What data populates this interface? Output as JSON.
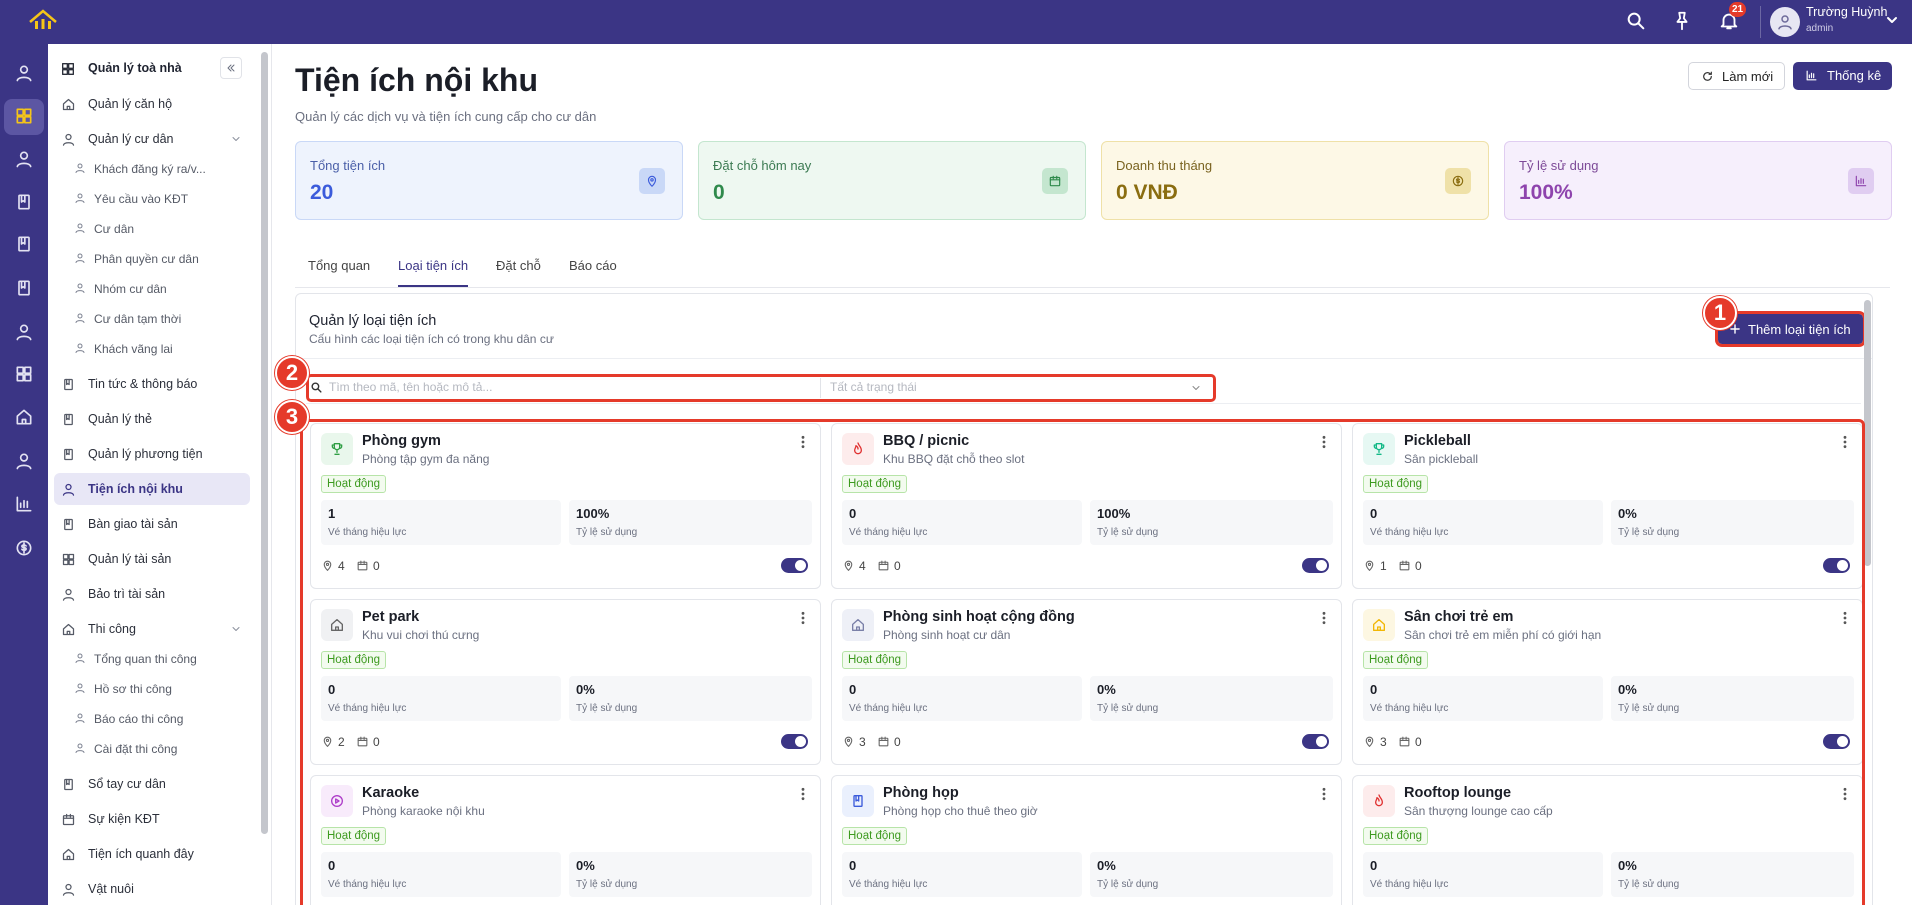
{
  "app": {
    "user_name": "Trường Huỳnh",
    "user_role": "admin",
    "notification_count": "21"
  },
  "sidebar": {
    "title": "Quản lý toà nhà",
    "items": [
      {
        "label": "Quản lý căn hộ"
      },
      {
        "label": "Quản lý cư dân",
        "expanded": true,
        "children": [
          "Khách đăng ký ra/v...",
          "Yêu cầu vào KĐT",
          "Cư dân",
          "Phân quyền cư dân",
          "Nhóm cư dân",
          "Cư dân tạm thời",
          "Khách vãng lai"
        ]
      },
      {
        "label": "Tin tức & thông báo"
      },
      {
        "label": "Quản lý thẻ"
      },
      {
        "label": "Quản lý phương tiện"
      },
      {
        "label": "Tiện ích nội khu",
        "active": true
      },
      {
        "label": "Bàn giao tài sản"
      },
      {
        "label": "Quản lý tài sản"
      },
      {
        "label": "Bảo trì tài sản"
      },
      {
        "label": "Thi công",
        "expanded": true,
        "children": [
          "Tổng quan thi công",
          "Hồ sơ thi công",
          "Báo cáo thi công",
          "Cài đặt thi công"
        ]
      },
      {
        "label": "Sổ tay cư dân"
      },
      {
        "label": "Sự kiện KĐT"
      },
      {
        "label": "Tiện ích quanh đây"
      },
      {
        "label": "Vật nuôi"
      }
    ]
  },
  "header": {
    "title": "Tiện ích nội khu",
    "subtitle": "Quản lý các dịch vụ và tiện ích cung cấp cho cư dân",
    "refresh_button": "Làm mới",
    "stats_button": "Thống kê"
  },
  "stats": [
    {
      "label": "Tổng tiện ích",
      "value": "20"
    },
    {
      "label": "Đặt chỗ hôm nay",
      "value": "0"
    },
    {
      "label": "Doanh thu tháng",
      "value": "0 VNĐ"
    },
    {
      "label": "Tỷ lệ sử dụng",
      "value": "100%"
    }
  ],
  "tabs": [
    {
      "label": "Tổng quan"
    },
    {
      "label": "Loại tiện ích",
      "active": true
    },
    {
      "label": "Đặt chỗ"
    },
    {
      "label": "Báo cáo"
    }
  ],
  "section": {
    "title": "Quản lý loại tiện ích",
    "subtitle": "Cấu hình các loại tiện ích có trong khu dân cư",
    "add_button": "Thêm loại tiện ích",
    "search_placeholder": "Tìm theo mã, tên hoặc mô tả...",
    "status_placeholder": "Tất cả trạng thái"
  },
  "annotations": [
    "1",
    "2",
    "3"
  ],
  "card_labels": {
    "tickets": "Vé tháng hiệu lực",
    "usage": "Tỷ lệ sử dụng"
  },
  "cards": [
    {
      "name": "Phòng gym",
      "description": "Phòng tập gym đa năng",
      "status": "Hoạt động",
      "tickets": "1",
      "usage": "100%",
      "locations": "4",
      "slots": "0",
      "enabled": true
    },
    {
      "name": "BBQ / picnic",
      "description": "Khu BBQ đặt chỗ theo slot",
      "status": "Hoạt động",
      "tickets": "0",
      "usage": "100%",
      "locations": "4",
      "slots": "0",
      "enabled": true
    },
    {
      "name": "Pickleball",
      "description": "Sân pickleball",
      "status": "Hoạt động",
      "tickets": "0",
      "usage": "0%",
      "locations": "1",
      "slots": "0",
      "enabled": true
    },
    {
      "name": "Pet park",
      "description": "Khu vui chơi thú cưng",
      "status": "Hoạt động",
      "tickets": "0",
      "usage": "0%",
      "locations": "2",
      "slots": "0",
      "enabled": true
    },
    {
      "name": "Phòng sinh hoạt cộng đồng",
      "description": "Phòng sinh hoạt cư dân",
      "status": "Hoạt động",
      "tickets": "0",
      "usage": "0%",
      "locations": "3",
      "slots": "0",
      "enabled": true
    },
    {
      "name": "Sân chơi trẻ em",
      "description": "Sân chơi trẻ em miễn phí có giới hạn",
      "status": "Hoạt động",
      "tickets": "0",
      "usage": "0%",
      "locations": "3",
      "slots": "0",
      "enabled": true
    },
    {
      "name": "Karaoke",
      "description": "Phòng karaoke nội khu",
      "status": "Hoạt động",
      "tickets": "0",
      "usage": "0%"
    },
    {
      "name": "Phòng họp",
      "description": "Phòng họp cho thuê theo giờ",
      "status": "Hoạt động",
      "tickets": "0",
      "usage": "0%"
    },
    {
      "name": "Rooftop lounge",
      "description": "Sân thượng lounge cao cấp",
      "status": "Hoạt động",
      "tickets": "0",
      "usage": "0%"
    }
  ]
}
